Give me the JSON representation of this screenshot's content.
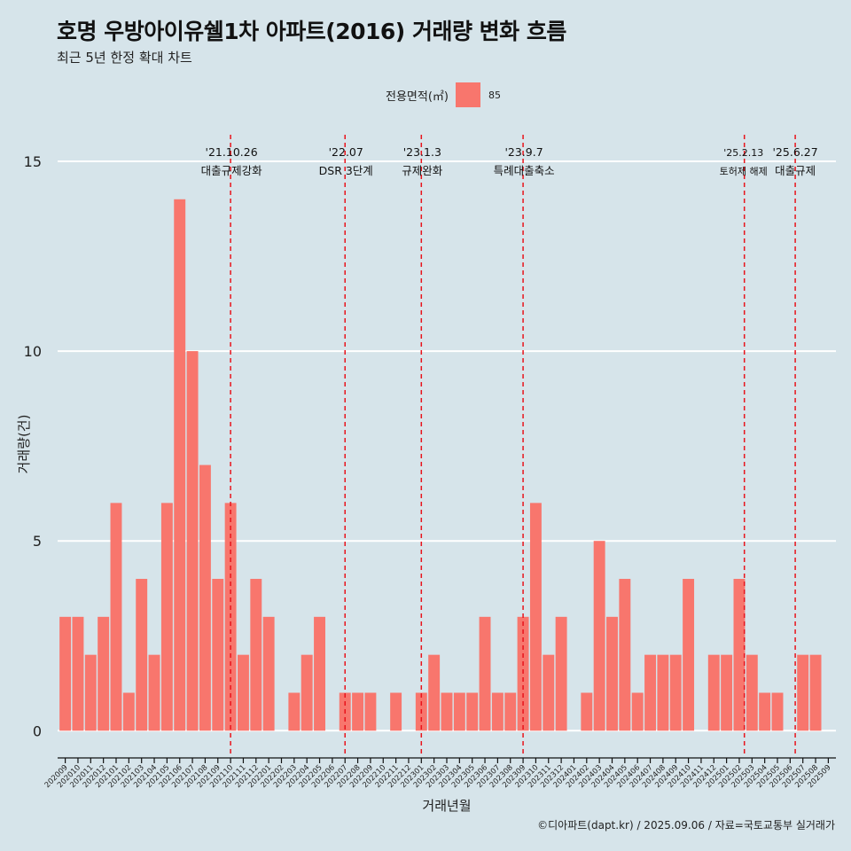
{
  "title": "호명 우방아이유쉘1차 아파트(2016) 거래량 변화 흐름",
  "subtitle": "최근 5년 한정 확대 차트",
  "caption": "©디아파트(dapt.kr) / 2025.09.06 / 자료=국토교통부 실거래가",
  "legend": {
    "title": "전용면적(㎡)",
    "label": "85"
  },
  "colors": {
    "bar": "#f8766d",
    "background": "#d6e4ea",
    "grid": "#ffffff",
    "event_line": "#e8141c"
  },
  "chart_data": {
    "type": "bar",
    "xlabel": "거래년월",
    "ylabel": "거래량(건)",
    "ylim": [
      -0.6,
      15.7
    ],
    "yticks": [
      0,
      5,
      10,
      15
    ],
    "grid": true,
    "legend_position": "top",
    "categories": [
      "202009",
      "202010",
      "202011",
      "202012",
      "202101",
      "202102",
      "202103",
      "202104",
      "202105",
      "202106",
      "202107",
      "202108",
      "202109",
      "202110",
      "202111",
      "202112",
      "202201",
      "202202",
      "202203",
      "202204",
      "202205",
      "202206",
      "202207",
      "202208",
      "202209",
      "202210",
      "202211",
      "202212",
      "202301",
      "202302",
      "202303",
      "202304",
      "202305",
      "202306",
      "202307",
      "202308",
      "202309",
      "202310",
      "202311",
      "202312",
      "202401",
      "202402",
      "202403",
      "202404",
      "202405",
      "202406",
      "202407",
      "202408",
      "202409",
      "202410",
      "202411",
      "202412",
      "202501",
      "202502",
      "202503",
      "202504",
      "202505",
      "202506",
      "202507",
      "202508",
      "202509"
    ],
    "series": [
      {
        "name": "85",
        "values": [
          3,
          3,
          2,
          3,
          6,
          1,
          4,
          2,
          6,
          14,
          10,
          7,
          4,
          6,
          2,
          4,
          3,
          0,
          1,
          2,
          3,
          0,
          1,
          1,
          1,
          0,
          1,
          0,
          1,
          2,
          1,
          1,
          1,
          3,
          1,
          1,
          3,
          6,
          2,
          3,
          0,
          1,
          5,
          3,
          4,
          1,
          2,
          2,
          2,
          4,
          0,
          2,
          2,
          4,
          2,
          1,
          1,
          0,
          2,
          2,
          0
        ]
      }
    ],
    "events": [
      {
        "x": 13.0,
        "date": "'21.10.26",
        "label": "대출규제강화"
      },
      {
        "x": 22.0,
        "date": "'22.07",
        "label": "DSR 3단계"
      },
      {
        "x": 28.0,
        "date": "'23.1.3",
        "label": "규제완화"
      },
      {
        "x": 36.0,
        "date": "'23.9.7",
        "label": "특례대출축소"
      },
      {
        "x": 53.4,
        "date": "'25.2.13",
        "label": "토허제 해제"
      },
      {
        "x": 57.4,
        "date": "'25.6.27",
        "label": "대출규제"
      }
    ]
  }
}
